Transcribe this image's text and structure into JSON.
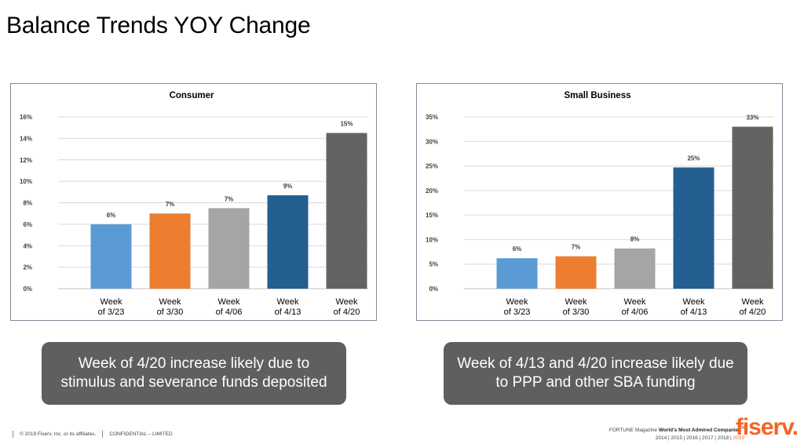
{
  "page": {
    "title": "Balance Trends YOY Change"
  },
  "chart_data": [
    {
      "type": "bar",
      "title": "Consumer",
      "categories": [
        "Week of 3/23",
        "Week of 3/30",
        "Week of 4/06",
        "Week of 4/13",
        "Week of 4/20"
      ],
      "category_lines": [
        [
          "Week",
          "of 3/23"
        ],
        [
          "Week",
          "of 3/30"
        ],
        [
          "Week",
          "of 4/06"
        ],
        [
          "Week",
          "of 4/13"
        ],
        [
          "Week",
          "of 4/20"
        ]
      ],
      "values": [
        6.0,
        7.0,
        7.5,
        8.7,
        14.5
      ],
      "data_labels": [
        "6%",
        "7%",
        "7%",
        "9%",
        "15%"
      ],
      "colors": [
        "#5b9bd5",
        "#ed7d31",
        "#a5a5a5",
        "#255e91",
        "#636363"
      ],
      "ylim": [
        0,
        16
      ],
      "yticks": [
        0,
        2,
        4,
        6,
        8,
        10,
        12,
        14,
        16
      ],
      "ytick_labels": [
        "0%",
        "2%",
        "4%",
        "6%",
        "8%",
        "10%",
        "12%",
        "14%",
        "16%"
      ],
      "grid": true,
      "legend": "none"
    },
    {
      "type": "bar",
      "title": "Small Business",
      "categories": [
        "Week of 3/23",
        "Week of 3/30",
        "Week of 4/06",
        "Week of 4/13",
        "Week of 4/20"
      ],
      "category_lines": [
        [
          "Week",
          "of 3/23"
        ],
        [
          "Week",
          "of 3/30"
        ],
        [
          "Week",
          "of 4/06"
        ],
        [
          "Week",
          "of 4/13"
        ],
        [
          "Week",
          "of 4/20"
        ]
      ],
      "values": [
        6.2,
        6.6,
        8.2,
        24.7,
        33.0
      ],
      "data_labels": [
        "6%",
        "7%",
        "8%",
        "25%",
        "33%"
      ],
      "colors": [
        "#5b9bd5",
        "#ed7d31",
        "#a5a5a5",
        "#255e91",
        "#636363"
      ],
      "ylim": [
        0,
        35
      ],
      "yticks": [
        0,
        5,
        10,
        15,
        20,
        25,
        30,
        35
      ],
      "ytick_labels": [
        "0%",
        "5%",
        "10%",
        "15%",
        "20%",
        "25%",
        "30%",
        "35%"
      ],
      "grid": true,
      "legend": "none"
    }
  ],
  "callouts": {
    "consumer": "Week of 4/20 increase likely due to stimulus and severance funds deposited",
    "small_business": "Week of 4/13 and 4/20 increase likely due to PPP and other SBA funding"
  },
  "footer": {
    "copyright": "© 2019 Fiserv, Inc. or its affiliates.",
    "confidential": "CONFIDENTIAL – LIMITED",
    "fortune_prefix": "FORTUNE Magazine ",
    "fortune_bold": "World's Most Admired Companies",
    "fortune_reg": "®",
    "years_plain": "2014  |  2015  |  2016  |  2017  |  2018  |  ",
    "years_highlight": "2019",
    "logo": "fiserv."
  }
}
